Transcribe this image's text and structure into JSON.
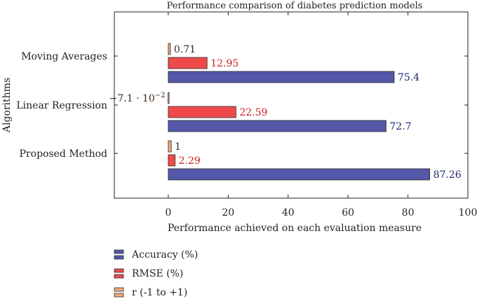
{
  "chart_data": {
    "type": "bar",
    "orientation": "horizontal",
    "title": "Performance comparison of diabetes prediction models",
    "xlabel": "Performance achieved on each evaluation measure",
    "ylabel": "Algorithms",
    "xlim": [
      -18,
      100
    ],
    "xticks": [
      0,
      20,
      40,
      60,
      80,
      100
    ],
    "categories": [
      "Moving Averages",
      "Linear Regression",
      "Proposed Method"
    ],
    "series": [
      {
        "name": "r (-1 to +1)",
        "color": "#f4a97e",
        "label_color": "#3b2a1a",
        "values": [
          0.71,
          -0.071,
          1
        ],
        "labels": [
          "0.71",
          "−7.1 · 10",
          "1"
        ]
      },
      {
        "name": "RMSE (%)",
        "color": "#ef4a4a",
        "label_color": "#cc1f1f",
        "values": [
          12.95,
          22.59,
          2.29
        ],
        "labels": [
          "12.95",
          "22.59",
          "2.29"
        ]
      },
      {
        "name": "Accuracy (%)",
        "color": "#5458a8",
        "label_color": "#1f2470",
        "values": [
          75.4,
          72.7,
          87.26
        ],
        "labels": [
          "75.4",
          "72.7",
          "87.26"
        ]
      }
    ],
    "sci_exponent": "−2",
    "legend_position": "bottom-left"
  }
}
